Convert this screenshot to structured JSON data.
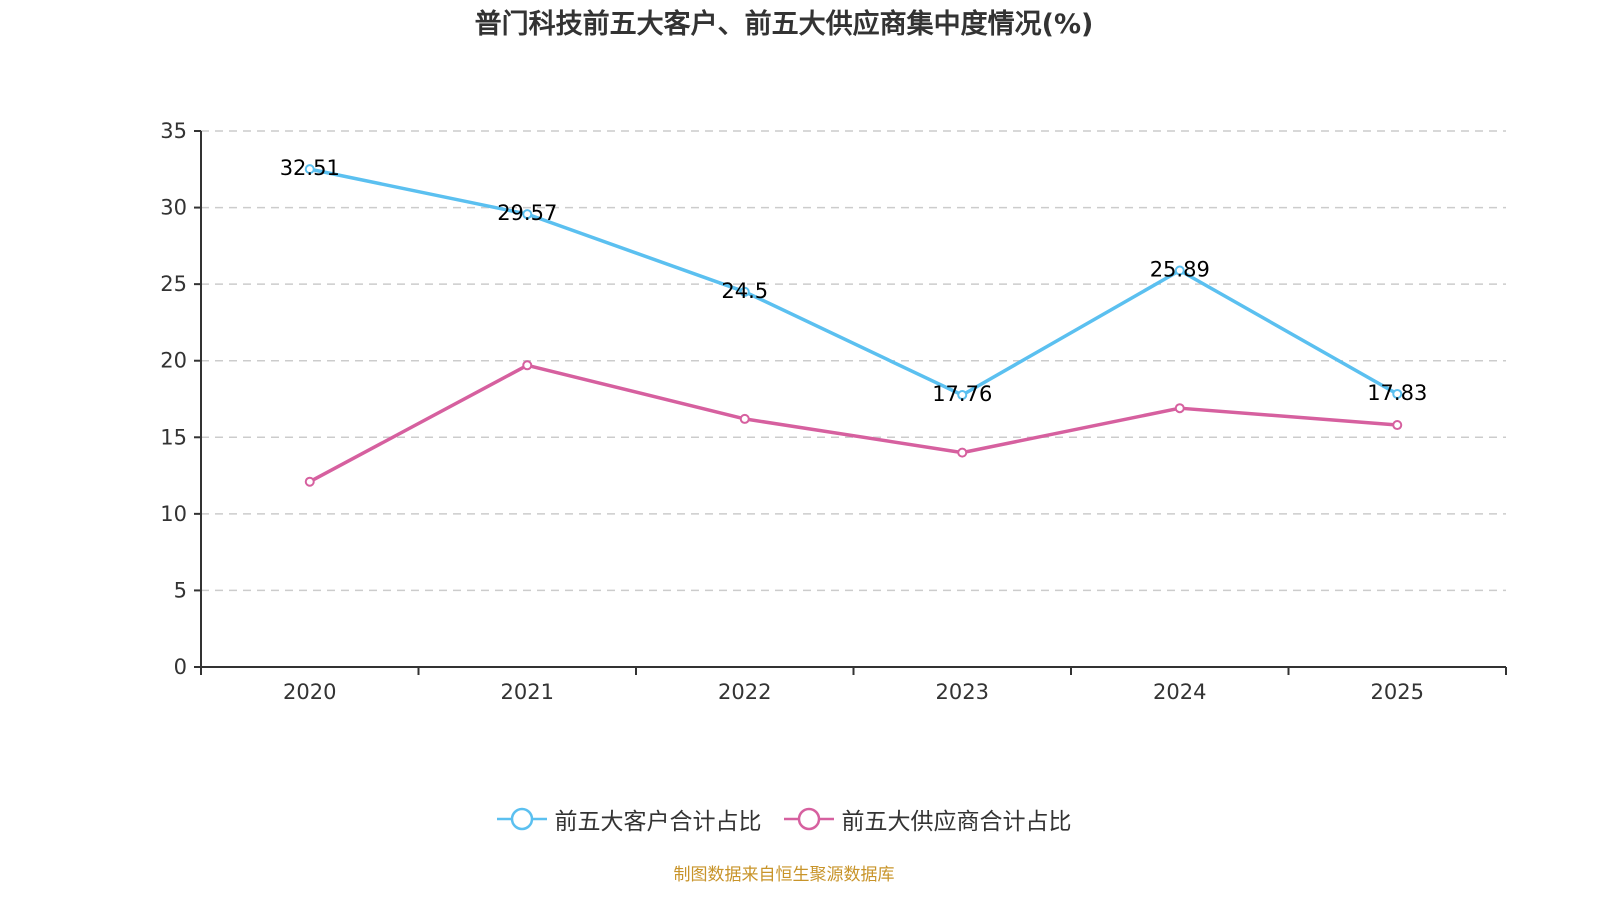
{
  "chart_data": {
    "type": "line",
    "title": "普门科技前五大客户、前五大供应商集中度情况(%)",
    "xlabel": "",
    "ylabel": "",
    "categories": [
      "2020",
      "2021",
      "2022",
      "2023",
      "2024",
      "2025"
    ],
    "ylim": [
      0,
      35
    ],
    "yticks": [
      0,
      5,
      10,
      15,
      20,
      25,
      30,
      35
    ],
    "grid": true,
    "legend_position": "bottom-center",
    "series": [
      {
        "name": "前五大客户合计占比",
        "color": "#5bc0f0",
        "values": [
          32.51,
          29.57,
          24.5,
          17.76,
          25.89,
          17.83
        ],
        "labels": [
          "32.51",
          "29.57",
          "24.5",
          "17.76",
          "25.89",
          "17.83"
        ],
        "show_labels": true
      },
      {
        "name": "前五大供应商合计占比",
        "color": "#d6609f",
        "values": [
          12.1,
          19.7,
          16.2,
          14.0,
          16.9,
          15.8
        ],
        "show_labels": false
      }
    ]
  },
  "legend": {
    "items": [
      {
        "label": "前五大客户合计占比",
        "color": "#5bc0f0"
      },
      {
        "label": "前五大供应商合计占比",
        "color": "#d6609f"
      }
    ]
  },
  "source_note": "制图数据来自恒生聚源数据库"
}
